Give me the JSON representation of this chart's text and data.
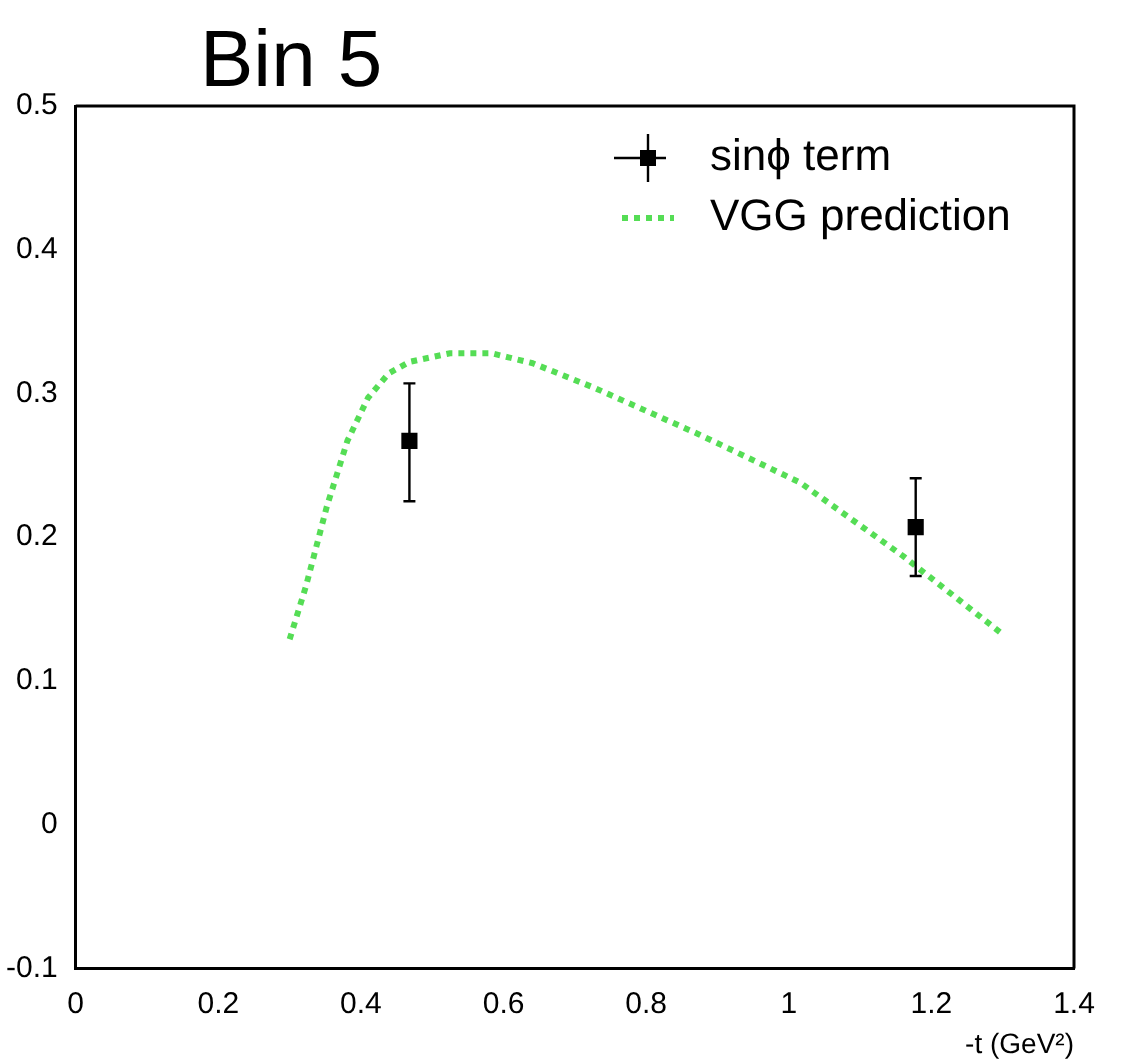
{
  "chart_data": {
    "type": "scatter",
    "title": "Bin 5",
    "xlabel": "-t (GeV²)",
    "xlim": [
      0,
      1.4
    ],
    "xticks": [
      0,
      0.2,
      0.4,
      0.6,
      0.8,
      1,
      1.2,
      1.4
    ],
    "ylim": [
      -0.1,
      0.5
    ],
    "yticks": [
      -0.1,
      0,
      0.1,
      0.2,
      0.3,
      0.4,
      0.5
    ],
    "grid": false,
    "legend": "top right",
    "series": [
      {
        "name": "sinϕ term",
        "color": "#000000",
        "marker": "square",
        "x": [
          0.468,
          1.178
        ],
        "values": [
          0.267,
          0.207
        ],
        "errors": [
          [
            0.225,
            0.307
          ],
          [
            0.173,
            0.241
          ]
        ]
      },
      {
        "name": "VGG prediction",
        "type": "line",
        "color": "#55dd55",
        "marker": "none",
        "line_style": "dotted",
        "x": [
          0.3,
          0.323,
          0.352,
          0.381,
          0.41,
          0.439,
          0.468,
          0.525,
          0.583,
          0.641,
          0.727,
          0.872,
          1.016,
          1.16,
          1.296
        ],
        "values": [
          0.129,
          0.166,
          0.221,
          0.267,
          0.297,
          0.314,
          0.322,
          0.328,
          0.328,
          0.321,
          0.304,
          0.272,
          0.238,
          0.187,
          0.134
        ]
      }
    ]
  }
}
